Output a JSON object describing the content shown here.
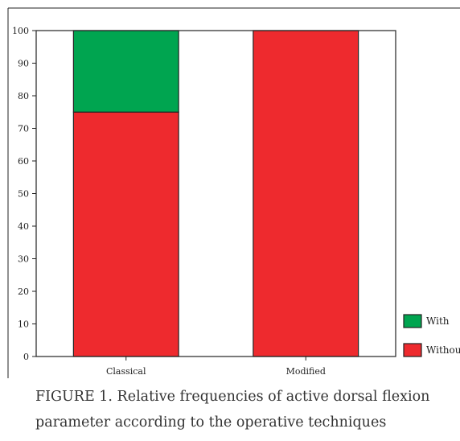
{
  "chart_data": {
    "type": "bar",
    "stacked": true,
    "categories": [
      "Classical",
      "Modified"
    ],
    "series": [
      {
        "name": "Without",
        "values": [
          75,
          100
        ],
        "color": "#ee2a2e"
      },
      {
        "name": "With",
        "values": [
          25,
          0
        ],
        "color": "#00a550"
      }
    ],
    "ylim": [
      0,
      100
    ],
    "yticks": [
      0,
      10,
      20,
      30,
      40,
      50,
      60,
      70,
      80,
      90,
      100
    ],
    "xlabel": "",
    "ylabel": "",
    "grid": false,
    "legend_position": "bottom-right"
  },
  "caption": {
    "line1": "FIGURE 1. Relative frequencies of active dorsal flexion",
    "line2": "parameter according to the operative techniques"
  }
}
